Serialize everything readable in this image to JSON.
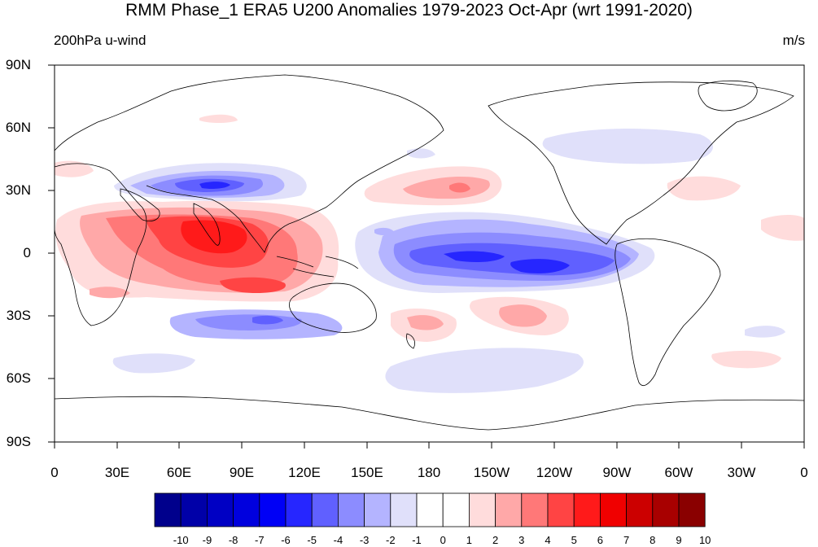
{
  "title": "RMM Phase_1 ERA5 U200 Anomalies 1979-2023 Oct-Apr (wrt 1991-2020)",
  "left_label": "200hPa u-wind",
  "right_label": "m/s",
  "lat_labels": [
    "90N",
    "60N",
    "30N",
    "0",
    "30S",
    "60S",
    "90S"
  ],
  "lon_labels": [
    "0",
    "30E",
    "60E",
    "90E",
    "120E",
    "150E",
    "180",
    "150W",
    "120W",
    "90W",
    "60W",
    "30W",
    "0"
  ],
  "colorbar": {
    "labels": [
      "-10",
      "-9",
      "-8",
      "-7",
      "-6",
      "-5",
      "-4",
      "-3",
      "-2",
      "-1",
      "0",
      "1",
      "2",
      "3",
      "4",
      "5",
      "6",
      "7",
      "8",
      "9",
      "10"
    ],
    "colors": [
      "#00008c",
      "#0000a8",
      "#0000c4",
      "#0000de",
      "#0000f6",
      "#2626ff",
      "#6060ff",
      "#8c8cff",
      "#b4b4ff",
      "#e0e0fa",
      "#ffffff",
      "#ffffff",
      "#ffdcdc",
      "#ffa8a8",
      "#ff7878",
      "#ff4444",
      "#ff1a1a",
      "#f00000",
      "#cc0000",
      "#a80000",
      "#8a0000"
    ]
  }
}
